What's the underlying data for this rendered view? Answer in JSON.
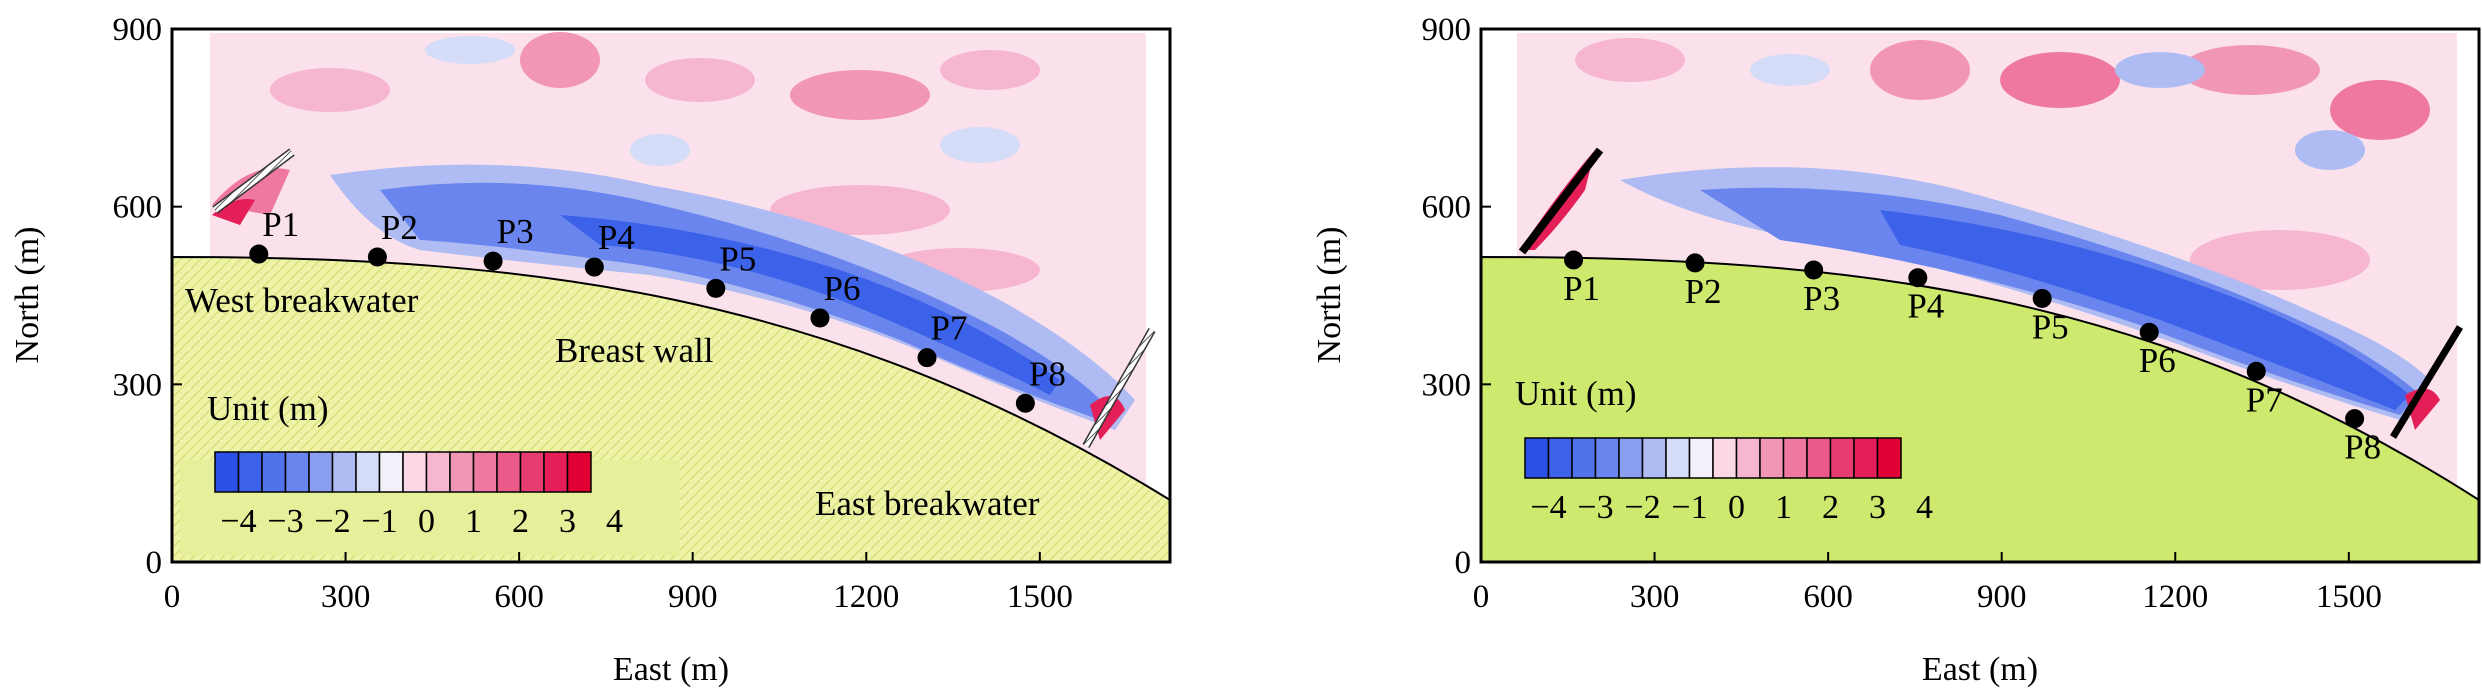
{
  "chart_data": [
    {
      "type": "heatmap",
      "panel": "left",
      "xlabel": "East (m)",
      "ylabel": "North (m)",
      "xlim": [
        0,
        1725
      ],
      "ylim": [
        0,
        900
      ],
      "xticks": [
        0,
        300,
        600,
        900,
        1200,
        1500
      ],
      "yticks": [
        0,
        300,
        600,
        900
      ],
      "points": [
        {
          "label": "P1",
          "x": 150,
          "y": 520
        },
        {
          "label": "P2",
          "x": 355,
          "y": 515
        },
        {
          "label": "P3",
          "x": 555,
          "y": 508
        },
        {
          "label": "P4",
          "x": 730,
          "y": 498
        },
        {
          "label": "P5",
          "x": 940,
          "y": 462
        },
        {
          "label": "P6",
          "x": 1120,
          "y": 412
        },
        {
          "label": "P7",
          "x": 1305,
          "y": 345
        },
        {
          "label": "P8",
          "x": 1475,
          "y": 268
        }
      ],
      "region_labels": [
        "West breakwater",
        "Breast wall",
        "East breakwater"
      ],
      "colorbar": {
        "title": "Unit (m)",
        "range": [
          -4,
          4
        ],
        "tick_labels": [
          "−4",
          "−3",
          "−2",
          "−1",
          "0",
          "1",
          "2",
          "3",
          "4"
        ]
      },
      "land_style": "hatched"
    },
    {
      "type": "heatmap",
      "panel": "right",
      "xlabel": "East (m)",
      "ylabel": "North (m)",
      "xlim": [
        0,
        1725
      ],
      "ylim": [
        0,
        900
      ],
      "xticks": [
        0,
        300,
        600,
        900,
        1200,
        1500
      ],
      "yticks": [
        0,
        300,
        600,
        900
      ],
      "points": [
        {
          "label": "P1",
          "x": 160,
          "y": 510
        },
        {
          "label": "P2",
          "x": 370,
          "y": 505
        },
        {
          "label": "P3",
          "x": 575,
          "y": 493
        },
        {
          "label": "P4",
          "x": 755,
          "y": 480
        },
        {
          "label": "P5",
          "x": 970,
          "y": 445
        },
        {
          "label": "P6",
          "x": 1155,
          "y": 388
        },
        {
          "label": "P7",
          "x": 1340,
          "y": 322
        },
        {
          "label": "P8",
          "x": 1510,
          "y": 242
        }
      ],
      "colorbar": {
        "title": "Unit (m)",
        "range": [
          -4,
          4
        ],
        "tick_labels": [
          "−4",
          "−3",
          "−2",
          "−1",
          "0",
          "1",
          "2",
          "3",
          "4"
        ]
      },
      "land_style": "solid"
    }
  ],
  "colors": {
    "land_hatched": "#eef3a8",
    "land_solid": "#cdea6e",
    "neg": [
      "#2a50e6",
      "#3d62ea",
      "#5073ec",
      "#6a86ee",
      "#8a9ef0",
      "#aebcf3",
      "#d4dcf8"
    ],
    "zero": "#f4f0fa",
    "pos": [
      "#fbd7e6",
      "#f7b6cf",
      "#f296b8",
      "#ee78a2",
      "#ea5a89",
      "#e73c70",
      "#e41e57",
      "#e00033"
    ]
  }
}
